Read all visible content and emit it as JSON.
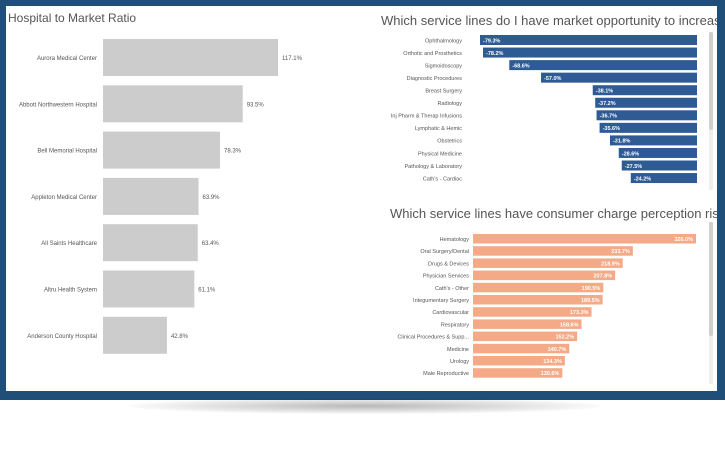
{
  "colors": {
    "frame": "#1f4e79",
    "hospital_bar": "#cccccc",
    "opportunity_bar": "#2e5b94",
    "risk_bar": "#f4a987",
    "title_text": "#555555"
  },
  "chart_data": [
    {
      "type": "bar",
      "orientation": "horizontal",
      "title": "Hospital to Market Ratio",
      "categories": [
        "Aurora Medical Center",
        "Abbott Northwestern Hospital",
        "Bell Memorial Hospital",
        "Appleton Medical Center",
        "All Saints Healthcare",
        "Altru Health System",
        "Anderson County Hospital"
      ],
      "values": [
        117.1,
        93.5,
        78.3,
        63.9,
        63.4,
        61.1,
        42.8
      ],
      "labels": [
        "117.1%",
        "93.5%",
        "78.3%",
        "63.9%",
        "63.4%",
        "61.1%",
        "42.8%"
      ],
      "xlim": [
        0,
        117.1
      ]
    },
    {
      "type": "bar",
      "orientation": "horizontal",
      "title": "Which service lines do I have market opportunity to increase charges?",
      "categories": [
        "Ophthalmology",
        "Orthotic and Prosthetics",
        "Sigmoidoscopy",
        "Diagnostic Procedures",
        "Breast Surgery",
        "Radiology",
        "Inj Pharm & Therap Infusions",
        "Lymphatic & Hemic",
        "Obstetrics",
        "Physical Medicine",
        "Pathology & Laboratory",
        "Cath's - Cardiac"
      ],
      "values": [
        -79.3,
        -78.2,
        -68.6,
        -57.0,
        -38.1,
        -37.2,
        -36.7,
        -35.6,
        -31.8,
        -28.6,
        -27.5,
        -24.2
      ],
      "labels": [
        "-79.3%",
        "-78.2%",
        "-68.6%",
        "-57.0%",
        "-38.1%",
        "-37.2%",
        "-36.7%",
        "-35.6%",
        "-31.8%",
        "-28.6%",
        "-27.5%",
        "-24.2%"
      ],
      "xlim": [
        -79.3,
        0
      ]
    },
    {
      "type": "bar",
      "orientation": "horizontal",
      "title": "Which service lines have consumer charge perception risk?",
      "categories": [
        "Hematology",
        "Oral Surgery/Dental",
        "Drugs & Devices",
        "Physician Services",
        "Cath's - Other",
        "Integumentary Surgery",
        "Cardiovascular",
        "Respiratory",
        "Clinical Procedures & Supp...",
        "Medicine",
        "Urology",
        "Male Reproductive"
      ],
      "values": [
        326.0,
        233.7,
        218.9,
        207.8,
        190.5,
        189.5,
        173.3,
        158.6,
        152.2,
        140.7,
        134.3,
        130.6
      ],
      "labels": [
        "326.0%",
        "233.7%",
        "218.9%",
        "207.8%",
        "190.5%",
        "189.5%",
        "173.3%",
        "158.6%",
        "152.2%",
        "140.7%",
        "134.3%",
        "130.6%"
      ],
      "xlim": [
        0,
        326.0
      ]
    }
  ]
}
